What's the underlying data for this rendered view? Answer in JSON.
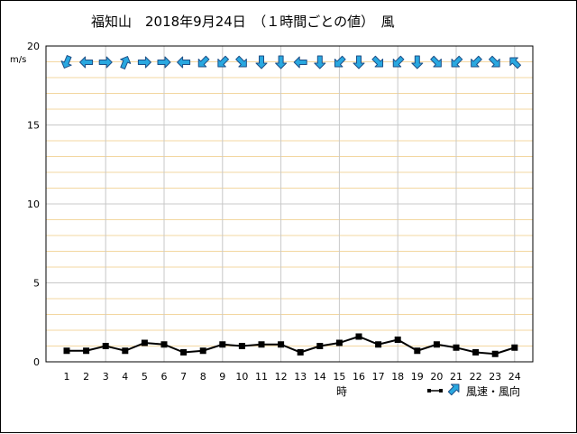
{
  "chart_data": {
    "type": "line",
    "title": "福知山　2018年9月24日　（１時間ごとの値）　風",
    "ylabel": "m/s",
    "xlabel": "時",
    "ylim": [
      0,
      20
    ],
    "yticks": [
      "0",
      "5",
      "10",
      "15",
      "20"
    ],
    "grid": true,
    "legend": {
      "position": "bottom-right",
      "label": "風速・風向"
    },
    "categories": [
      "1",
      "2",
      "3",
      "4",
      "5",
      "6",
      "7",
      "8",
      "9",
      "10",
      "11",
      "12",
      "13",
      "14",
      "15",
      "16",
      "17",
      "18",
      "19",
      "20",
      "21",
      "22",
      "23",
      "24"
    ],
    "series": [
      {
        "type": "line",
        "values": [
          0.7,
          0.7,
          1.0,
          0.7,
          1.2,
          1.1,
          0.6,
          0.7,
          1.1,
          1.0,
          1.1,
          1.1,
          0.6,
          1.0,
          1.2,
          1.6,
          1.1,
          1.4,
          0.7,
          1.1,
          0.9,
          0.6,
          0.5,
          0.9
        ]
      }
    ],
    "wind_direction": [
      "北北東",
      "東",
      "西",
      "南南西",
      "西",
      "西",
      "東",
      "北東",
      "北東",
      "北西",
      "北",
      "北",
      "東",
      "北",
      "北東",
      "北",
      "北西",
      "北東",
      "北",
      "北西",
      "北東",
      "北東",
      "北西",
      "南東"
    ],
    "colors": {
      "line": "#000000",
      "arrow_fill": "#29a8e0",
      "arrow_stroke": "#1f4f86",
      "grid_minor": "#f3d7a0",
      "grid_major": "#c8c8c8"
    }
  }
}
